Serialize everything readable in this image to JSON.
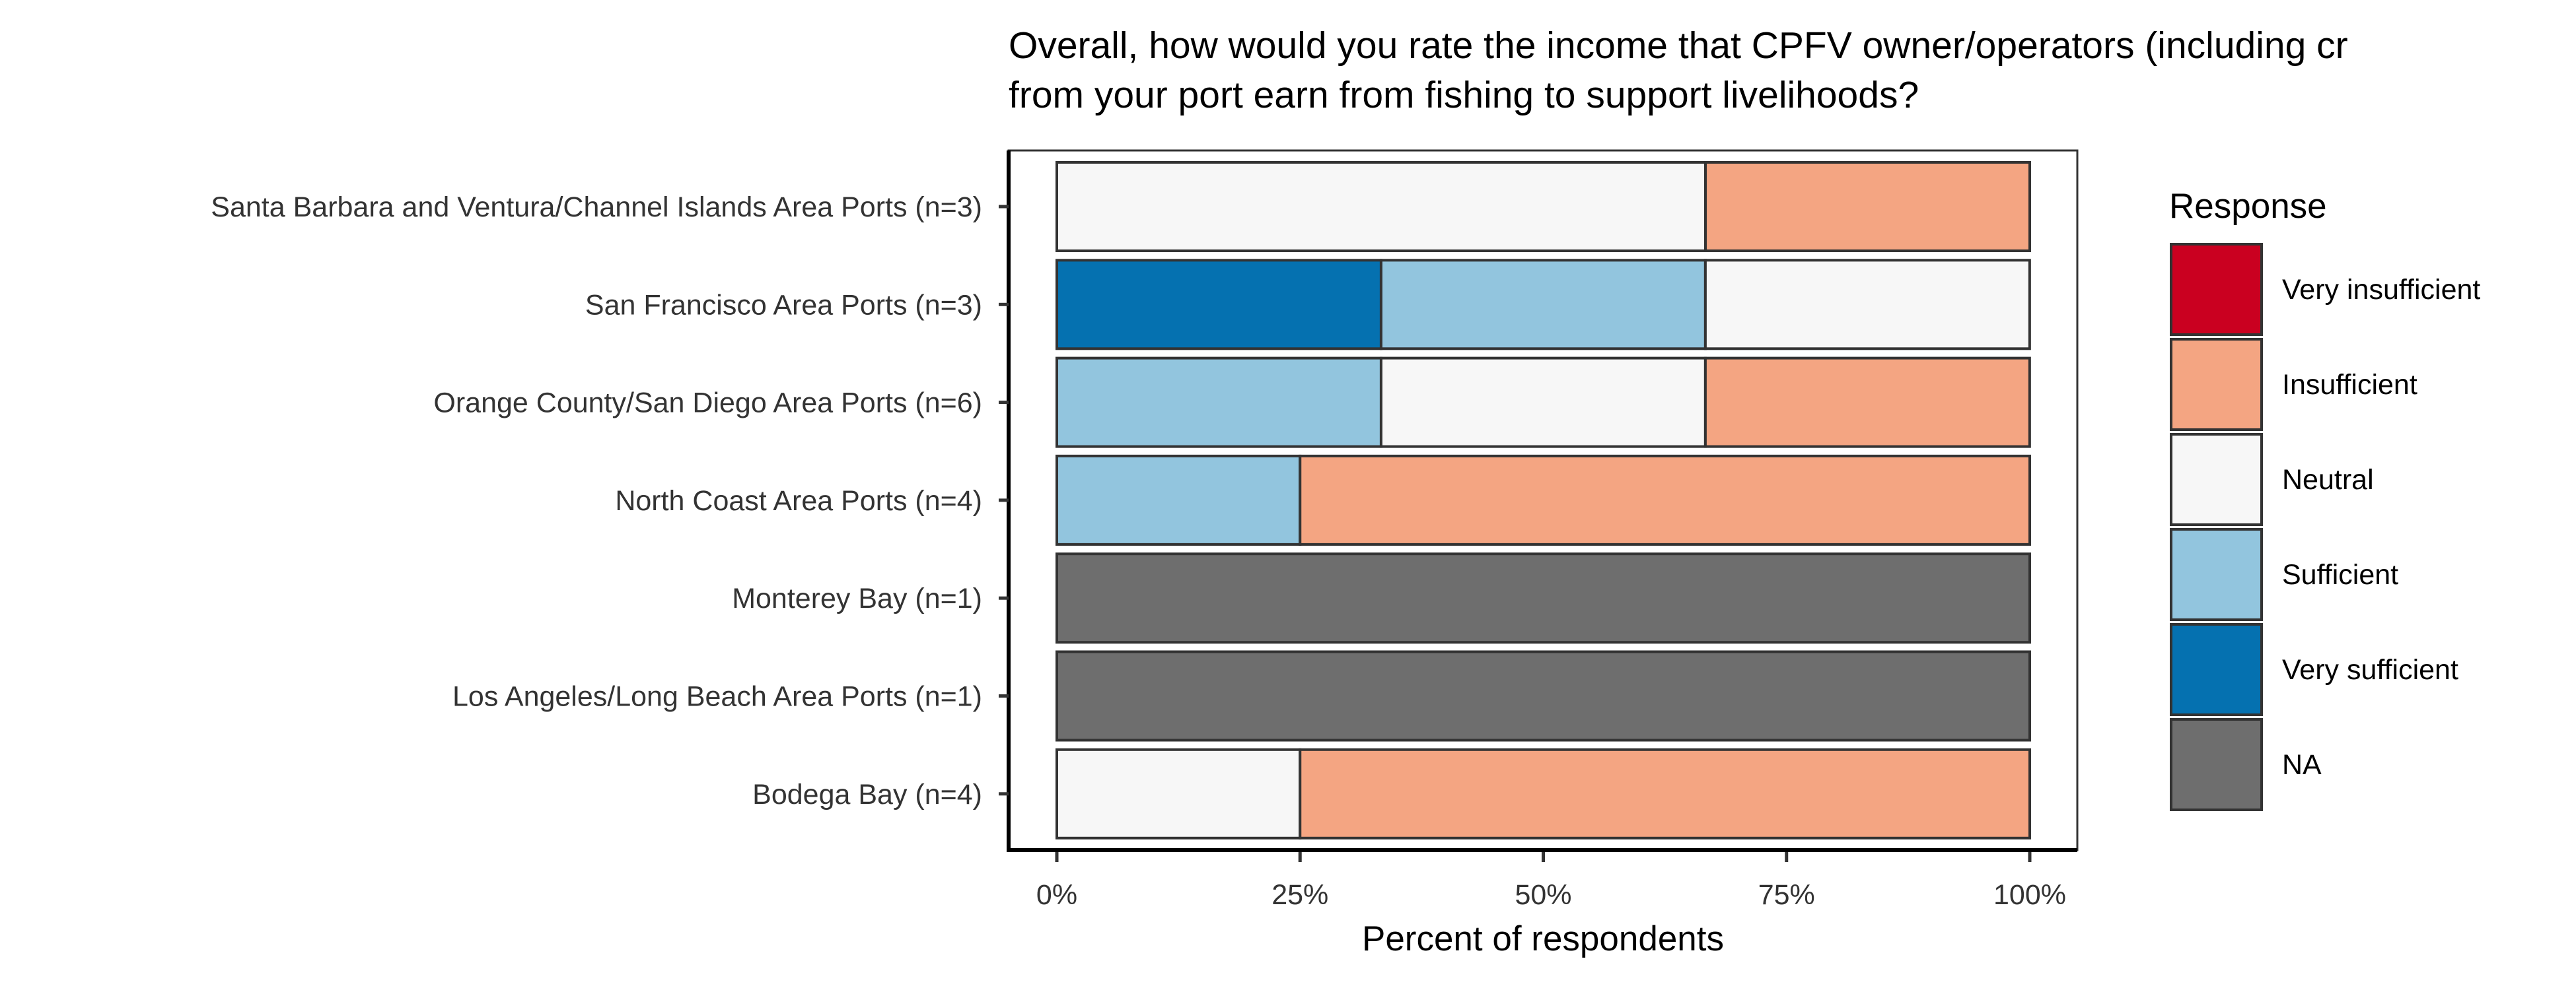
{
  "chart_data": {
    "type": "bar",
    "orientation": "horizontal",
    "stacked": true,
    "title_lines": [
      "Overall, how would you rate the income that CPFV owner/operators (including cr",
      "from your port earn from fishing to support livelihoods?"
    ],
    "xlabel": "Percent of respondents",
    "ylabel": "",
    "xlim": [
      0,
      1
    ],
    "x_ticks": [
      0,
      0.25,
      0.5,
      0.75,
      1
    ],
    "x_tick_labels": [
      "0%",
      "25%",
      "50%",
      "75%",
      "100%"
    ],
    "categories": [
      "Santa Barbara and Ventura/Channel Islands Area Ports (n=3)",
      "San Francisco Area Ports (n=3)",
      "Orange County/San Diego Area Ports (n=6)",
      "North Coast Area Ports (n=4)",
      "Monterey Bay (n=1)",
      "Los Angeles/Long Beach Area Ports (n=1)",
      "Bodega Bay (n=4)"
    ],
    "series": [
      {
        "name": "Very insufficient",
        "color": "#ca0020",
        "values": [
          0,
          0,
          0,
          0,
          0,
          0,
          0
        ]
      },
      {
        "name": "Insufficient",
        "color": "#f4a582",
        "values": [
          0.3333,
          0,
          0.3333,
          0.75,
          0,
          0,
          0.75
        ]
      },
      {
        "name": "Neutral",
        "color": "#f7f7f7",
        "values": [
          0.6667,
          0.3333,
          0.3333,
          0,
          0,
          0,
          0.25
        ]
      },
      {
        "name": "Sufficient",
        "color": "#92c5de",
        "values": [
          0,
          0.3333,
          0.3333,
          0.25,
          0,
          0,
          0
        ]
      },
      {
        "name": "Very sufficient",
        "color": "#0571b0",
        "values": [
          0,
          0.3333,
          0,
          0,
          0,
          0,
          0
        ]
      },
      {
        "name": "NA",
        "color": "#6e6e6e",
        "values": [
          0,
          0,
          0,
          0,
          1,
          1,
          0
        ]
      }
    ],
    "stack_order_left_to_right": [
      "Very sufficient",
      "Sufficient",
      "Neutral",
      "Insufficient",
      "Very insufficient",
      "NA"
    ],
    "legend_title": "Response",
    "legend_position": "right",
    "grid": false
  }
}
